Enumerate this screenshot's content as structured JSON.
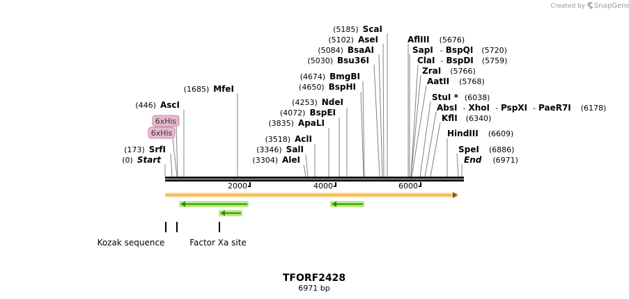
{
  "credit": {
    "prefix": "Created by",
    "brand": "SnapGene"
  },
  "plasmid": {
    "name": "TFORF2428",
    "length_label": "6971 bp",
    "length": 6971
  },
  "ruler": {
    "ticks": [
      "2000",
      "4000",
      "6000"
    ]
  },
  "sites": {
    "scai": {
      "pos": "(5185)",
      "name": "ScaI"
    },
    "asei": {
      "pos": "(5102)",
      "name": "AseI"
    },
    "bsaai": {
      "pos": "(5084)",
      "name": "BsaAI"
    },
    "bsu36i": {
      "pos": "(5030)",
      "name": "Bsu36I"
    },
    "bmgbi": {
      "pos": "(4674)",
      "name": "BmgBI"
    },
    "bsphi": {
      "pos": "(4650)",
      "name": "BspHI"
    },
    "ndei": {
      "pos": "(4253)",
      "name": "NdeI"
    },
    "bspei": {
      "pos": "(4072)",
      "name": "BspEI"
    },
    "apali": {
      "pos": "(3835)",
      "name": "ApaLI"
    },
    "acli": {
      "pos": "(3518)",
      "name": "AclI"
    },
    "sali": {
      "pos": "(3346)",
      "name": "SalI"
    },
    "alei": {
      "pos": "(3304)",
      "name": "AleI"
    },
    "mfei": {
      "pos": "(1685)",
      "name": "MfeI"
    },
    "asci": {
      "pos": "(446)",
      "name": "AscI"
    },
    "srfi": {
      "pos": "(173)",
      "name": "SrfI"
    },
    "start": {
      "pos": "(0)",
      "name": "Start"
    },
    "aflii": {
      "name": "AflIII",
      "pos": "(5676)"
    },
    "sapi": {
      "name": "SapI",
      "sep": "-",
      "name2": "BspQI",
      "pos": "(5720)"
    },
    "clai": {
      "name": "ClaI",
      "sep": "-",
      "name2": "BspDI",
      "pos": "(5759)"
    },
    "zrai": {
      "name": "ZraI",
      "pos": "(5766)"
    },
    "aatii": {
      "name": "AatII",
      "pos": "(5768)"
    },
    "stui": {
      "name": "StuI *",
      "pos": "(6038)"
    },
    "absi": {
      "name": "AbsI",
      "sep": "-",
      "name2": "XhoI",
      "sep2": "-",
      "name3": "PspXI",
      "sep3": "-",
      "name4": "PaeR7I",
      "pos": "(6178)"
    },
    "kfli": {
      "name": "KflI",
      "pos": "(6340)"
    },
    "hindiii": {
      "name": "HindIII",
      "pos": "(6609)"
    },
    "spei": {
      "name": "SpeI",
      "pos": "(6886)"
    },
    "end": {
      "name": "End",
      "pos": "(6971)"
    }
  },
  "tags": [
    "6xHis",
    "6xHis"
  ],
  "features": {
    "kozak": "Kozak sequence",
    "factor_xa": "Factor Xa site"
  },
  "colors": {
    "orf": "#f6b94a",
    "orf_border": "#c98a1c",
    "arrow": "#2e8b00",
    "arrow_glow": "#b8ec86",
    "tag_fill": "#e7b9cf",
    "tag_stroke": "#c88aa8"
  }
}
